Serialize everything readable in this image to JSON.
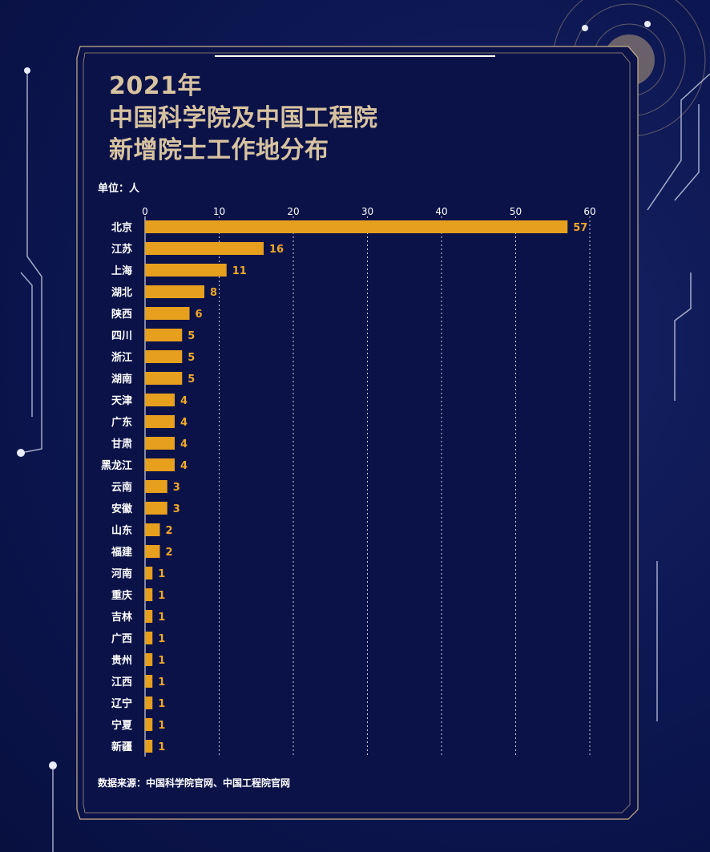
{
  "title": {
    "line1": "2021年",
    "line2": "中国科学院及中国工程院",
    "line3": "新增院士工作地分布"
  },
  "unit_label": "单位：人",
  "source_label": "数据来源：中国科学院官网、中国工程院官网",
  "colors": {
    "bar": "#e6a01e",
    "value_label": "#f0a82a",
    "title": "#d8c3a0",
    "background": "#0c1650",
    "panel_border": "#c9b08a"
  },
  "chart_data": {
    "type": "bar",
    "orientation": "horizontal",
    "categories": [
      "北京",
      "江苏",
      "上海",
      "湖北",
      "陕西",
      "四川",
      "浙江",
      "湖南",
      "天津",
      "广东",
      "甘肃",
      "黑龙江",
      "云南",
      "安徽",
      "山东",
      "福建",
      "河南",
      "重庆",
      "吉林",
      "广西",
      "贵州",
      "江西",
      "辽宁",
      "宁夏",
      "新疆"
    ],
    "values": [
      57,
      16,
      11,
      8,
      6,
      5,
      5,
      5,
      4,
      4,
      4,
      4,
      3,
      3,
      2,
      2,
      1,
      1,
      1,
      1,
      1,
      1,
      1,
      1,
      1
    ],
    "xlim": [
      0,
      60
    ],
    "xticks": [
      0,
      10,
      20,
      30,
      40,
      50,
      60
    ],
    "grid": true,
    "xaxis_position": "top"
  }
}
